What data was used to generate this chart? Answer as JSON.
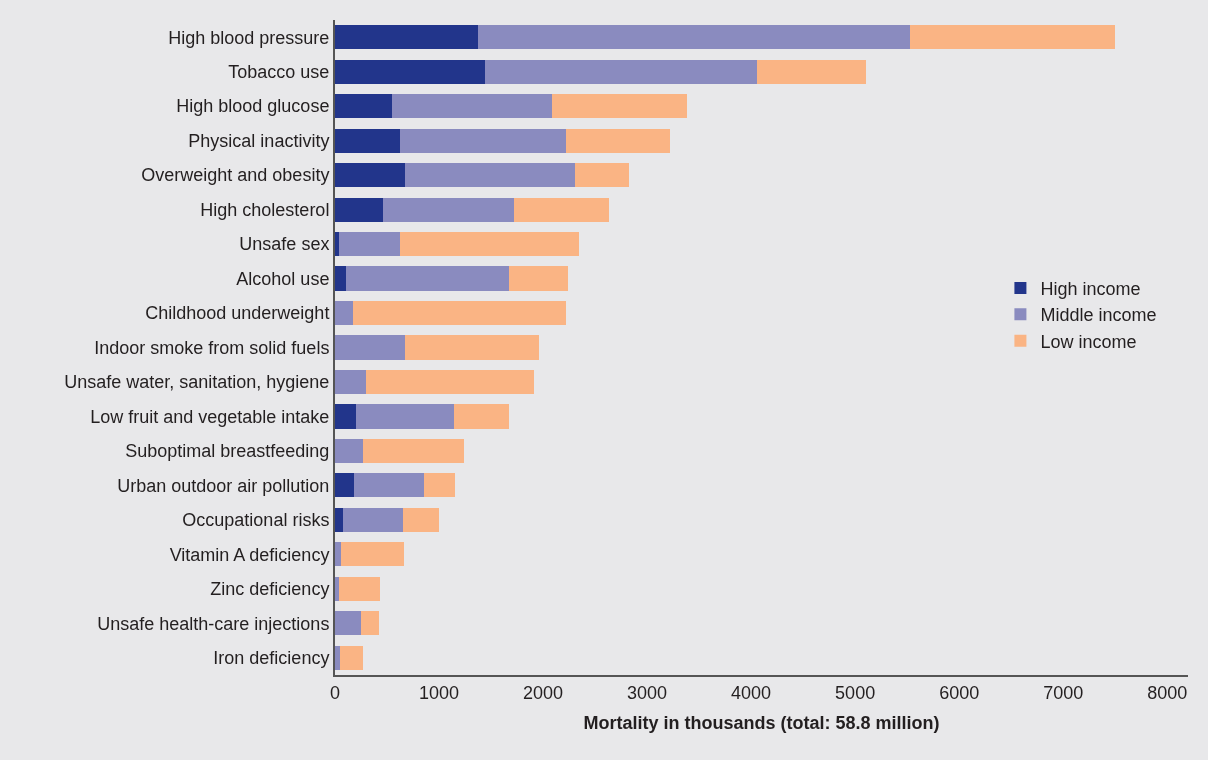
{
  "chart_data": {
    "type": "bar",
    "orientation": "horizontal",
    "stacked": true,
    "xlabel": "Mortality in thousands (total: 58.8 million)",
    "categories": [
      "High blood pressure",
      "Tobacco use",
      "High blood glucose",
      "Physical inactivity",
      "Overweight and obesity",
      "High cholesterol",
      "Unsafe sex",
      "Alcohol use",
      "Childhood underweight",
      "Indoor smoke from solid fuels",
      "Unsafe water, sanitation, hygiene",
      "Low fruit and vegetable intake",
      "Suboptimal breastfeeding",
      "Urban outdoor air pollution",
      "Occupational risks",
      "Vitamin A deficiency",
      "Zinc deficiency",
      "Unsafe health-care injections",
      "Iron deficiency"
    ],
    "series": [
      {
        "name": "High income",
        "color": "#22358b",
        "values": [
          1370,
          1440,
          550,
          620,
          670,
          460,
          40,
          110,
          0,
          0,
          0,
          200,
          0,
          180,
          80,
          0,
          0,
          0,
          0
        ]
      },
      {
        "name": "Middle income",
        "color": "#8a8bbf",
        "values": [
          4160,
          2620,
          1540,
          1600,
          1640,
          1260,
          580,
          1560,
          170,
          670,
          300,
          940,
          270,
          680,
          570,
          60,
          40,
          250,
          50
        ]
      },
      {
        "name": "Low income",
        "color": "#fab484",
        "values": [
          1970,
          1040,
          1290,
          1000,
          520,
          910,
          1730,
          570,
          2050,
          1290,
          1610,
          530,
          970,
          290,
          350,
          600,
          390,
          170,
          220
        ]
      }
    ],
    "xlim": [
      0,
      8200
    ],
    "xticks": [
      0,
      1000,
      2000,
      3000,
      4000,
      5000,
      6000,
      7000,
      8000
    ],
    "grid": false,
    "legend": "right"
  }
}
